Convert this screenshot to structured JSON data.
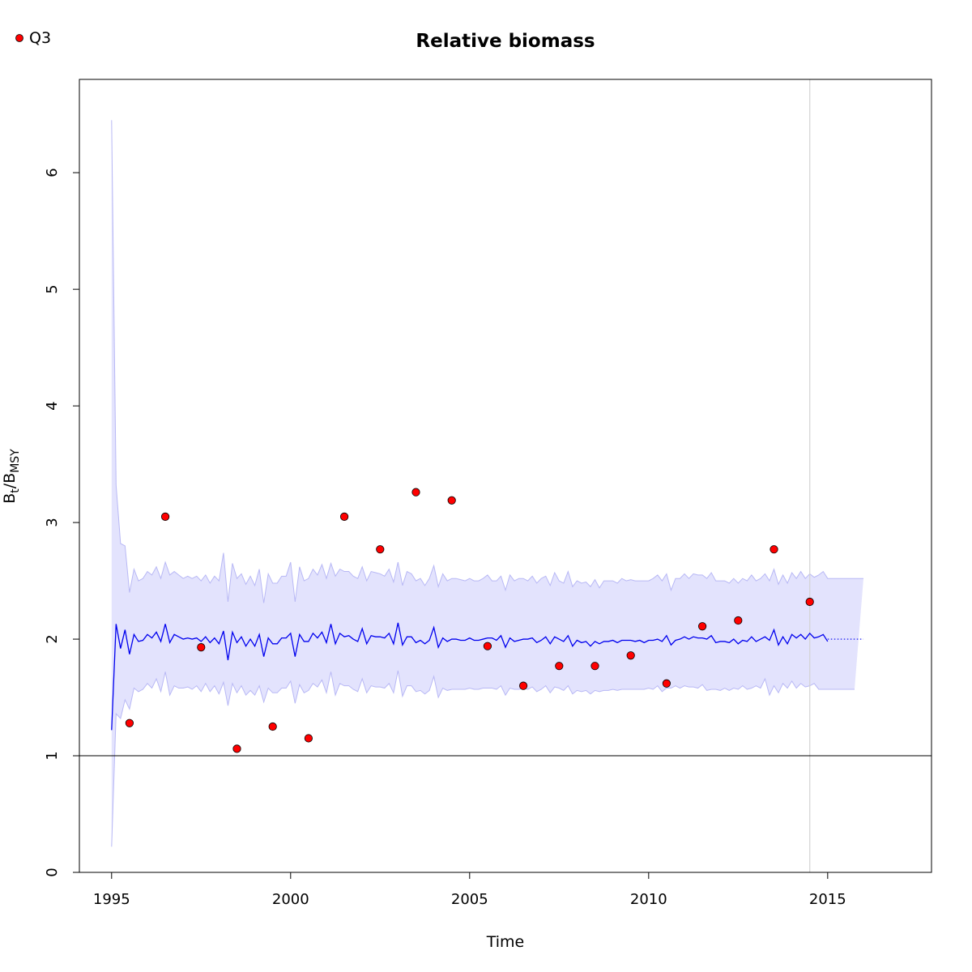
{
  "chart_data": {
    "type": "line",
    "title": "Relative biomass",
    "xlabel": "Time",
    "ylabel": {
      "main": "B",
      "sub1": "t",
      "sep": "/B",
      "sub2": "MSY"
    },
    "xlim": [
      1994.1,
      2017.9
    ],
    "ylim": [
      0,
      6.8
    ],
    "x_ticks": [
      1995,
      2000,
      2005,
      2010,
      2015
    ],
    "y_ticks": [
      0,
      1,
      2,
      3,
      4,
      5,
      6
    ],
    "grid": false,
    "legend": {
      "position": "top-left",
      "entries": [
        {
          "label": "Q3",
          "color": "#ff0000"
        }
      ]
    },
    "reference_line_y": 1,
    "reference_vline_x": 2014.5,
    "colors": {
      "estimate": "#0000ee",
      "ci_fill": "#e3e3fd",
      "ci_border": "#b8b8f5",
      "points": "#ff0000",
      "reference": "#000000",
      "vline": "#d3d3d3"
    },
    "estimate": {
      "x_start": 1995,
      "step": 0.125,
      "values": [
        1.22,
        2.13,
        1.92,
        2.08,
        1.87,
        2.04,
        1.98,
        1.99,
        2.04,
        2.01,
        2.06,
        1.98,
        2.13,
        1.97,
        2.04,
        2.02,
        2.0,
        2.01,
        2.0,
        2.01,
        1.98,
        2.02,
        1.97,
        2.01,
        1.96,
        2.07,
        1.82,
        2.06,
        1.97,
        2.02,
        1.94,
        2.0,
        1.94,
        2.04,
        1.85,
        2.01,
        1.96,
        1.96,
        2.01,
        2.01,
        2.05,
        1.85,
        2.04,
        1.98,
        1.98,
        2.05,
        2.01,
        2.06,
        1.97,
        2.13,
        1.96,
        2.05,
        2.02,
        2.03,
        2.0,
        1.98,
        2.09,
        1.96,
        2.03,
        2.02,
        2.02,
        2.01,
        2.05,
        1.96,
        2.14,
        1.95,
        2.02,
        2.02,
        1.97,
        1.99,
        1.96,
        1.99,
        2.1,
        1.93,
        2.01,
        1.98,
        2.0,
        2.0,
        1.99,
        1.99,
        2.01,
        1.99,
        1.99,
        2.0,
        2.01,
        2.01,
        1.99,
        2.03,
        1.93,
        2.01,
        1.98,
        1.99,
        2.0,
        2.0,
        2.01,
        1.97,
        1.99,
        2.02,
        1.96,
        2.02,
        2.0,
        1.98,
        2.03,
        1.94,
        1.99,
        1.97,
        1.98,
        1.94,
        1.98,
        1.96,
        1.98,
        1.98,
        1.99,
        1.97,
        1.99,
        1.99,
        1.99,
        1.98,
        1.99,
        1.97,
        1.99,
        1.99,
        2.0,
        1.98,
        2.03,
        1.95,
        1.99,
        2.0,
        2.02,
        2.0,
        2.02,
        2.01,
        2.01,
        2.0,
        2.03,
        1.97,
        1.98,
        1.98,
        1.97,
        2.0,
        1.96,
        1.99,
        1.98,
        2.02,
        1.98,
        2.0,
        2.02,
        1.99,
        2.08,
        1.95,
        2.02,
        1.96,
        2.04,
        2.01,
        2.04,
        2.0,
        2.05,
        2.01,
        2.02,
        2.04,
        1.98
      ],
      "projection": {
        "x_start": 2015,
        "x_end": 2016,
        "value": 2.0
      }
    },
    "ci_upper": [
      6.45,
      3.32,
      2.82,
      2.8,
      2.4,
      2.6,
      2.5,
      2.52,
      2.58,
      2.55,
      2.62,
      2.52,
      2.66,
      2.55,
      2.58,
      2.55,
      2.52,
      2.54,
      2.52,
      2.54,
      2.5,
      2.55,
      2.48,
      2.54,
      2.5,
      2.74,
      2.32,
      2.65,
      2.52,
      2.56,
      2.47,
      2.54,
      2.46,
      2.6,
      2.31,
      2.56,
      2.48,
      2.48,
      2.54,
      2.54,
      2.66,
      2.32,
      2.62,
      2.5,
      2.52,
      2.6,
      2.55,
      2.64,
      2.52,
      2.65,
      2.54,
      2.6,
      2.58,
      2.58,
      2.54,
      2.52,
      2.62,
      2.5,
      2.58,
      2.57,
      2.56,
      2.54,
      2.6,
      2.49,
      2.66,
      2.46,
      2.58,
      2.56,
      2.5,
      2.52,
      2.46,
      2.52,
      2.63,
      2.45,
      2.56,
      2.5,
      2.52,
      2.52,
      2.51,
      2.5,
      2.52,
      2.5,
      2.5,
      2.52,
      2.55,
      2.5,
      2.5,
      2.54,
      2.42,
      2.55,
      2.5,
      2.52,
      2.52,
      2.5,
      2.54,
      2.48,
      2.52,
      2.54,
      2.46,
      2.57,
      2.5,
      2.48,
      2.58,
      2.45,
      2.5,
      2.48,
      2.49,
      2.45,
      2.51,
      2.44,
      2.5,
      2.5,
      2.5,
      2.48,
      2.52,
      2.5,
      2.51,
      2.5,
      2.5,
      2.5,
      2.5,
      2.52,
      2.55,
      2.5,
      2.56,
      2.42,
      2.52,
      2.52,
      2.56,
      2.52,
      2.56,
      2.55,
      2.55,
      2.52,
      2.57,
      2.5,
      2.5,
      2.5,
      2.48,
      2.52,
      2.48,
      2.52,
      2.5,
      2.55,
      2.5,
      2.52,
      2.56,
      2.5,
      2.6,
      2.47,
      2.55,
      2.48,
      2.57,
      2.52,
      2.58,
      2.52,
      2.56,
      2.53,
      2.55,
      2.58,
      2.52,
      2.52,
      2.52,
      2.52,
      2.52,
      2.52,
      2.52,
      2.52,
      2.52
    ],
    "ci_lower": [
      0.22,
      1.36,
      1.32,
      1.48,
      1.4,
      1.58,
      1.55,
      1.57,
      1.62,
      1.58,
      1.66,
      1.55,
      1.72,
      1.52,
      1.6,
      1.58,
      1.58,
      1.59,
      1.57,
      1.6,
      1.55,
      1.62,
      1.55,
      1.6,
      1.53,
      1.63,
      1.43,
      1.62,
      1.54,
      1.6,
      1.52,
      1.56,
      1.52,
      1.6,
      1.46,
      1.58,
      1.54,
      1.54,
      1.58,
      1.58,
      1.64,
      1.45,
      1.61,
      1.54,
      1.56,
      1.62,
      1.59,
      1.65,
      1.54,
      1.72,
      1.52,
      1.62,
      1.6,
      1.6,
      1.57,
      1.55,
      1.66,
      1.54,
      1.6,
      1.59,
      1.59,
      1.58,
      1.62,
      1.54,
      1.73,
      1.51,
      1.6,
      1.6,
      1.55,
      1.56,
      1.53,
      1.56,
      1.68,
      1.5,
      1.58,
      1.56,
      1.57,
      1.57,
      1.57,
      1.57,
      1.58,
      1.57,
      1.57,
      1.58,
      1.58,
      1.58,
      1.57,
      1.6,
      1.52,
      1.58,
      1.57,
      1.57,
      1.58,
      1.57,
      1.59,
      1.55,
      1.57,
      1.6,
      1.54,
      1.59,
      1.58,
      1.56,
      1.6,
      1.53,
      1.56,
      1.55,
      1.56,
      1.53,
      1.56,
      1.55,
      1.56,
      1.56,
      1.57,
      1.56,
      1.57,
      1.57,
      1.57,
      1.57,
      1.57,
      1.57,
      1.58,
      1.57,
      1.6,
      1.55,
      1.58,
      1.58,
      1.6,
      1.58,
      1.6,
      1.59,
      1.59,
      1.58,
      1.61,
      1.56,
      1.57,
      1.57,
      1.56,
      1.58,
      1.56,
      1.58,
      1.57,
      1.6,
      1.57,
      1.58,
      1.6,
      1.58,
      1.66,
      1.52,
      1.6,
      1.54,
      1.62,
      1.58,
      1.64,
      1.58,
      1.62,
      1.59,
      1.6,
      1.62,
      1.57,
      1.57,
      1.57,
      1.57,
      1.57,
      1.57,
      1.57,
      1.57,
      1.57
    ],
    "points": {
      "name": "Q3",
      "x": [
        1995.5,
        1996.5,
        1997.5,
        1998.5,
        1999.5,
        2000.5,
        2001.5,
        2002.5,
        2003.5,
        2004.5,
        2005.5,
        2006.5,
        2007.5,
        2008.5,
        2009.5,
        2010.5,
        2011.5,
        2012.5,
        2013.5,
        2014.5
      ],
      "y": [
        1.28,
        3.05,
        1.93,
        1.06,
        1.25,
        1.15,
        3.05,
        2.77,
        3.26,
        3.19,
        1.94,
        1.6,
        1.77,
        1.77,
        1.86,
        1.62,
        2.11,
        2.16,
        2.77,
        2.32
      ]
    }
  }
}
